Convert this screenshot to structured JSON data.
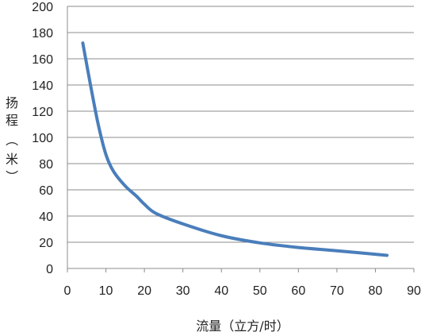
{
  "chart_data": {
    "type": "line",
    "title": "",
    "xlabel": "流量（立方/时）",
    "ylabel_chars": [
      "扬",
      "程",
      "（",
      "米",
      "）"
    ],
    "xlim": [
      0,
      90
    ],
    "ylim": [
      0,
      200
    ],
    "x_ticks": [
      "0",
      "10",
      "20",
      "30",
      "40",
      "50",
      "60",
      "70",
      "80",
      "90"
    ],
    "y_ticks": [
      "0",
      "20",
      "40",
      "60",
      "80",
      "100",
      "120",
      "140",
      "160",
      "180",
      "200"
    ],
    "grid": "horizontal",
    "legend": "none",
    "series": [
      {
        "color": "#4a7ebb",
        "x": [
          4,
          6,
          8,
          10,
          12,
          15,
          18,
          20,
          23,
          30,
          40,
          50,
          60,
          70,
          83
        ],
        "y": [
          172,
          140,
          110,
          87,
          74,
          63,
          55,
          49,
          42,
          34,
          25,
          19.5,
          16,
          13.5,
          10
        ]
      }
    ]
  }
}
